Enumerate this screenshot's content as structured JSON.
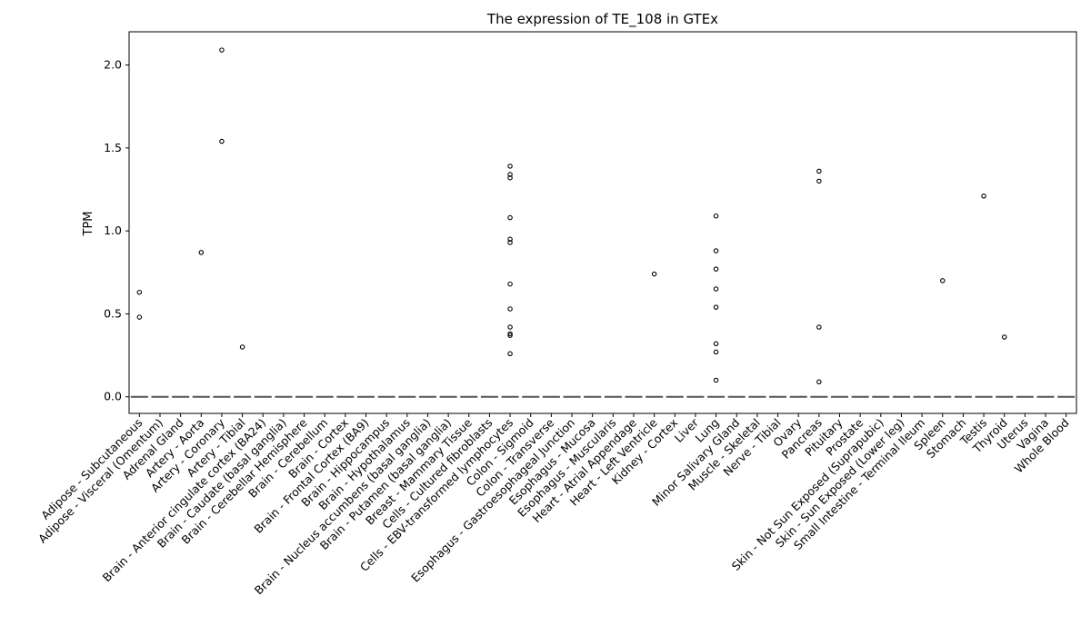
{
  "chart_data": {
    "type": "box",
    "title": "The expression of TE_108 in GTEx",
    "ylabel": "TPM",
    "ylim": [
      -0.1,
      2.2
    ],
    "yticks": [
      "0.0",
      "0.5",
      "1.0",
      "1.5",
      "2.0"
    ],
    "grid": false,
    "categories": [
      "Adipose - Subcutaneous",
      "Adipose - Visceral (Omentum)",
      "Adrenal Gland",
      "Artery - Aorta",
      "Artery - Coronary",
      "Artery - Tibial",
      "Brain - Anterior cingulate cortex (BA24)",
      "Brain - Caudate (basal ganglia)",
      "Brain - Cerebellar Hemisphere",
      "Brain - Cerebellum",
      "Brain - Cortex",
      "Brain - Frontal Cortex (BA9)",
      "Brain - Hippocampus",
      "Brain - Hypothalamus",
      "Brain - Nucleus accumbens (basal ganglia)",
      "Brain - Putamen (basal ganglia)",
      "Breast - Mammary Tissue",
      "Cells - Cultured fibroblasts",
      "Cells - EBV-transformed lymphocytes",
      "Colon - Sigmoid",
      "Colon - Transverse",
      "Esophagus - Gastroesophageal Junction",
      "Esophagus - Mucosa",
      "Esophagus - Muscularis",
      "Heart - Atrial Appendage",
      "Heart - Left Ventricle",
      "Kidney - Cortex",
      "Liver",
      "Lung",
      "Minor Salivary Gland",
      "Muscle - Skeletal",
      "Nerve - Tibial",
      "Ovary",
      "Pancreas",
      "Pituitary",
      "Prostate",
      "Skin - Not Sun Exposed (Suprapubic)",
      "Skin - Sun Exposed (Lower leg)",
      "Small Intestine - Terminal Ileum",
      "Spleen",
      "Stomach",
      "Testis",
      "Thyroid",
      "Uterus",
      "Vagina",
      "Whole Blood"
    ],
    "median": 0,
    "outliers": [
      [
        0.63,
        0.48
      ],
      [],
      [],
      [
        0.87
      ],
      [
        2.09,
        1.54
      ],
      [
        0.3
      ],
      [],
      [],
      [],
      [],
      [],
      [],
      [],
      [],
      [],
      [],
      [],
      [],
      [
        1.39,
        1.34,
        1.32,
        1.08,
        0.95,
        0.93,
        0.68,
        0.53,
        0.42,
        0.38,
        0.37,
        0.26
      ],
      [],
      [],
      [],
      [],
      [],
      [],
      [
        0.74
      ],
      [],
      [],
      [
        1.09,
        0.88,
        0.77,
        0.65,
        0.54,
        0.32,
        0.27,
        0.1
      ],
      [],
      [],
      [],
      [],
      [
        1.36,
        1.3,
        0.42,
        0.09
      ],
      [],
      [],
      [],
      [],
      [],
      [
        0.7
      ],
      [],
      [
        1.21
      ],
      [
        0.36
      ],
      [],
      [],
      []
    ],
    "colors": {
      "median_line": "#555555",
      "outlier": "#000000",
      "axis": "#000000"
    }
  }
}
